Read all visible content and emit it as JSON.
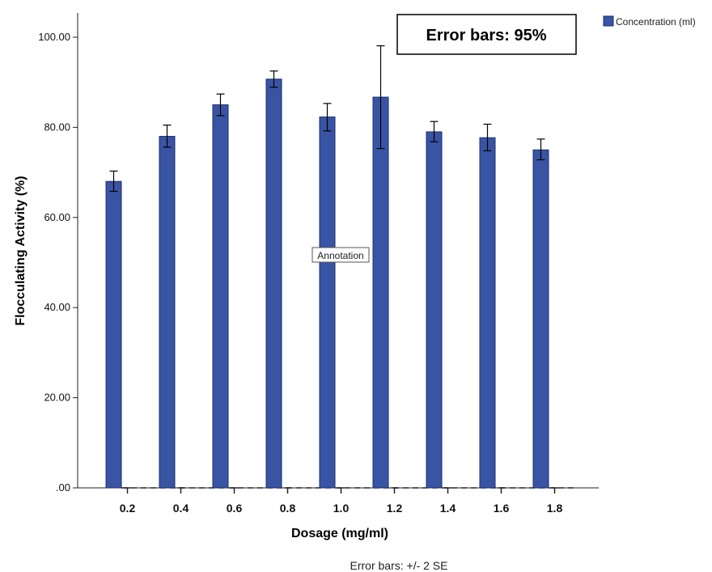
{
  "chart_data": {
    "type": "bar",
    "categories": [
      "0.2",
      "0.4",
      "0.6",
      "0.8",
      "1.0",
      "1.2",
      "1.4",
      "1.6",
      "1.8"
    ],
    "series": [
      {
        "name": "Concentration (ml)",
        "values": [
          68.0,
          78.0,
          85.0,
          90.7,
          82.3,
          86.7,
          79.0,
          77.7,
          75.0
        ],
        "error_low": [
          65.8,
          75.6,
          82.6,
          88.9,
          79.2,
          75.3,
          76.8,
          74.8,
          72.8
        ],
        "error_high": [
          70.3,
          80.5,
          87.4,
          92.5,
          85.3,
          98.1,
          81.3,
          80.7,
          77.4
        ]
      }
    ],
    "xlabel": "Dosage (mg/ml)",
    "ylabel": "Flocculating Activity (%)",
    "ylim": [
      0,
      100
    ],
    "yticks": [
      ".00",
      "20.00",
      "40.00",
      "60.00",
      "80.00",
      "100.00"
    ],
    "grid": false,
    "legend": {
      "position": "top-right",
      "label": "Concentration (ml)"
    },
    "annotations": {
      "box_text": "Error bars: 95%",
      "inline_text": "Annotation"
    },
    "footnote": "Error bars: +/- 2 SE",
    "colors": {
      "bar_fill": "#3a54a4",
      "bar_stroke": "#1c2f6e",
      "axis": "#222222"
    }
  }
}
